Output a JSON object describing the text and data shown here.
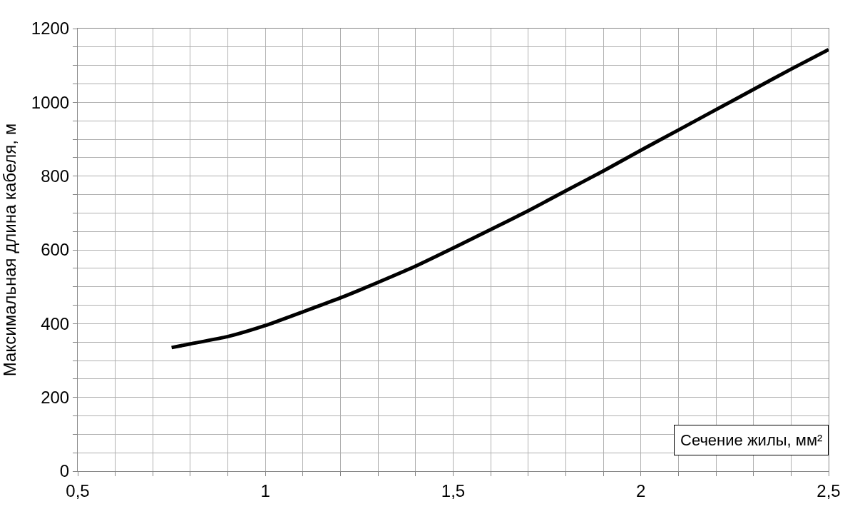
{
  "chart_data": {
    "type": "line",
    "xlabel": "Сечение жилы, мм²",
    "ylabel": "Максимальная длина кабеля, м",
    "x": [
      0.75,
      0.8,
      0.9,
      1.0,
      1.1,
      1.2,
      1.3,
      1.4,
      1.5,
      1.6,
      1.7,
      1.8,
      1.9,
      2.0,
      2.1,
      2.2,
      2.3,
      2.4,
      2.5
    ],
    "series": [
      {
        "color": "#000000",
        "values": [
          335,
          345,
          365,
          395,
          432,
          470,
          512,
          556,
          605,
          655,
          706,
          760,
          814,
          870,
          925,
          980,
          1035,
          1090,
          1143
        ]
      }
    ],
    "xlim": [
      0.5,
      2.5
    ],
    "ylim": [
      0,
      1200
    ],
    "xticks": [
      {
        "value": 0.5,
        "label": "0,5"
      },
      {
        "value": 0.6,
        "label": null
      },
      {
        "value": 0.7,
        "label": null
      },
      {
        "value": 0.8,
        "label": null
      },
      {
        "value": 0.9,
        "label": null
      },
      1,
      {
        "value": 1.1,
        "label": null
      },
      {
        "value": 1.2,
        "label": null
      },
      {
        "value": 1.3,
        "label": null
      },
      {
        "value": 1.4,
        "label": null
      },
      {
        "value": 1.5,
        "label": "1,5"
      },
      {
        "value": 1.6,
        "label": null
      },
      {
        "value": 1.7,
        "label": null
      },
      {
        "value": 1.8,
        "label": null
      },
      {
        "value": 1.9,
        "label": null
      },
      2,
      {
        "value": 2.1,
        "label": null
      },
      {
        "value": 2.2,
        "label": null
      },
      {
        "value": 2.3,
        "label": null
      },
      {
        "value": 2.4,
        "label": null
      },
      {
        "value": 2.5,
        "label": "2,5"
      }
    ],
    "yticks": [
      0,
      {
        "value": 50,
        "label": null
      },
      {
        "value": 100,
        "label": null
      },
      {
        "value": 150,
        "label": null
      },
      200,
      {
        "value": 250,
        "label": null
      },
      {
        "value": 300,
        "label": null
      },
      {
        "value": 350,
        "label": null
      },
      400,
      {
        "value": 450,
        "label": null
      },
      {
        "value": 500,
        "label": null
      },
      {
        "value": 550,
        "label": null
      },
      600,
      {
        "value": 650,
        "label": null
      },
      {
        "value": 700,
        "label": null
      },
      {
        "value": 750,
        "label": null
      },
      800,
      {
        "value": 850,
        "label": null
      },
      {
        "value": 900,
        "label": null
      },
      {
        "value": 950,
        "label": null
      },
      1000,
      {
        "value": 1050,
        "label": null
      },
      {
        "value": 1100,
        "label": null
      },
      {
        "value": 1150,
        "label": null
      },
      1200
    ],
    "grid": true,
    "marker": "none",
    "line_style": "solid"
  }
}
